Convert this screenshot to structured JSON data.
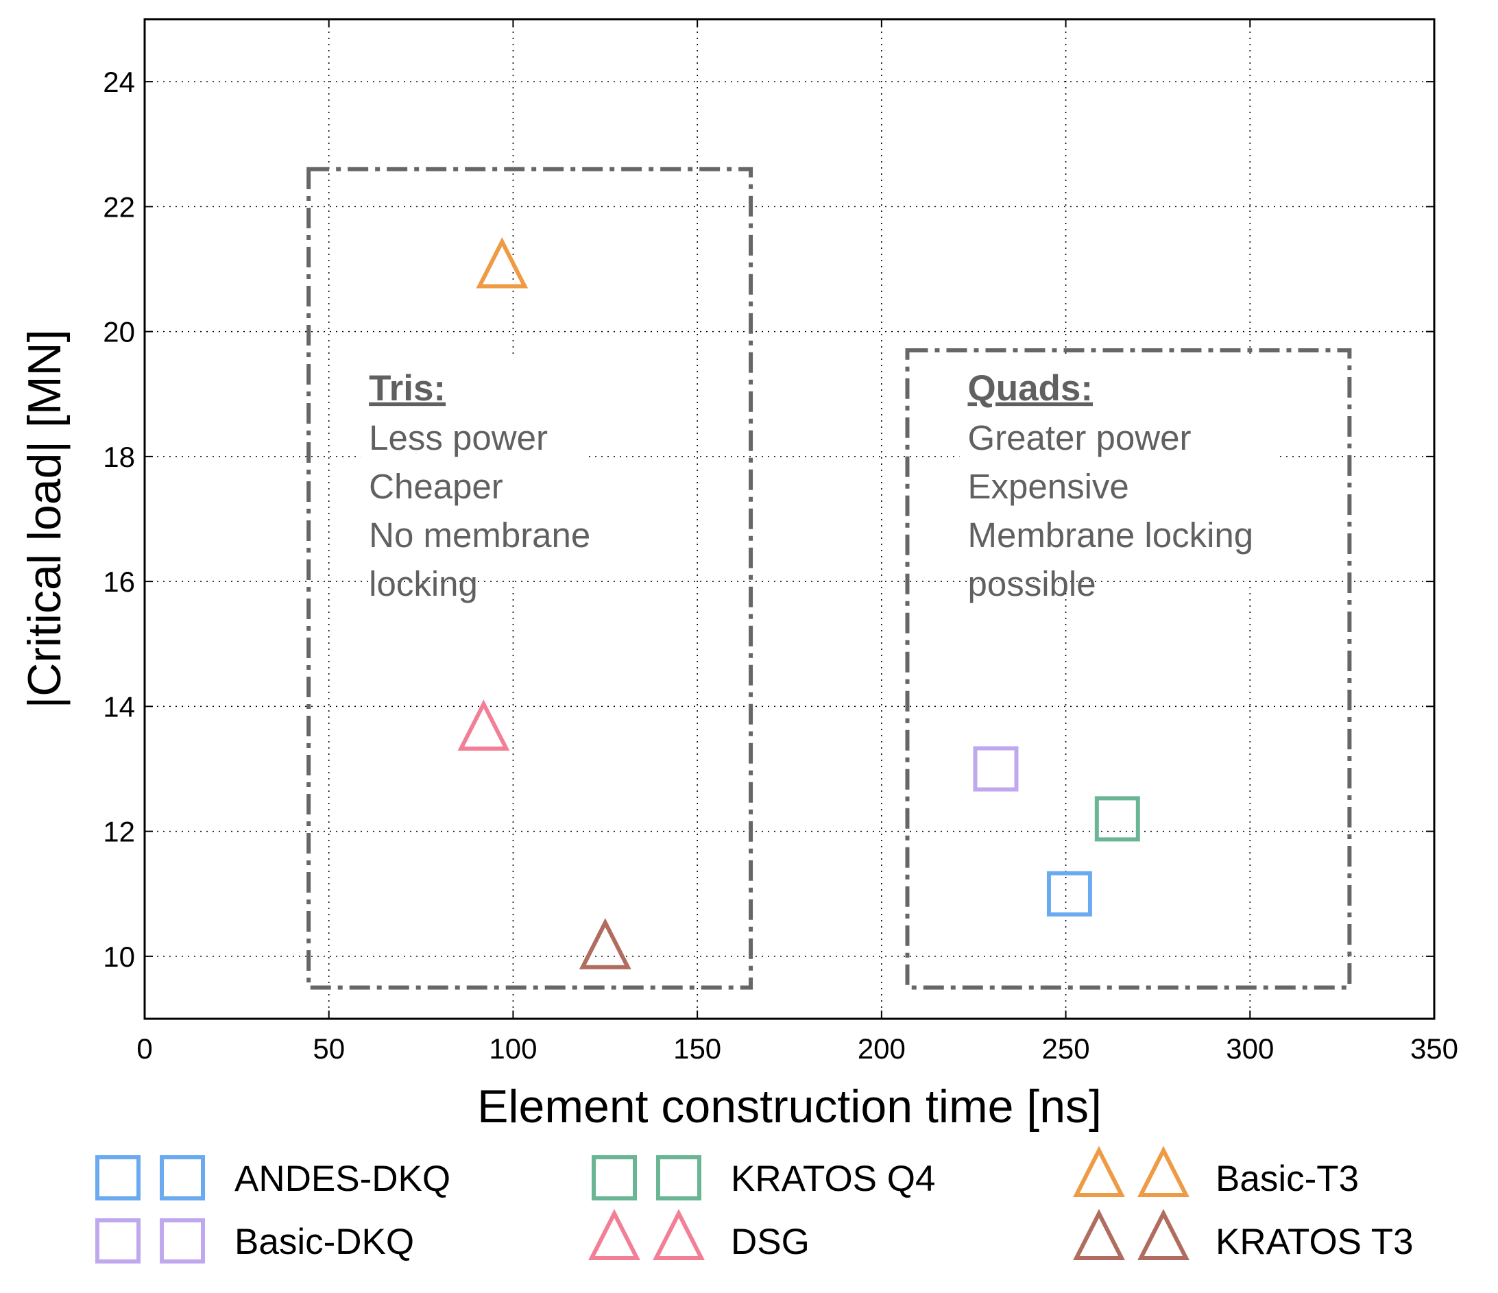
{
  "chart_data": {
    "type": "scatter",
    "xlabel": "Element construction time [ns]",
    "ylabel": "|Critical load| [MN]",
    "xlim": [
      0,
      350
    ],
    "ylim": [
      9,
      25
    ],
    "xticks": [
      "0",
      "50",
      "100",
      "150",
      "200",
      "250",
      "300",
      "350"
    ],
    "yticks": [
      "10",
      "12",
      "14",
      "16",
      "18",
      "20",
      "22",
      "24"
    ],
    "grid": true,
    "legend_position": "bottom",
    "series": [
      {
        "name": "ANDES-DKQ",
        "marker": "square",
        "color": "#6aaaf0",
        "x": 251,
        "y": 11.0
      },
      {
        "name": "Basic-DKQ",
        "marker": "square",
        "color": "#c0a8ee",
        "x": 231,
        "y": 13.0
      },
      {
        "name": "KRATOS Q4",
        "marker": "square",
        "color": "#6ab594",
        "x": 264,
        "y": 12.2
      },
      {
        "name": "DSG",
        "marker": "triangle",
        "color": "#f27f96",
        "x": 92,
        "y": 13.6
      },
      {
        "name": "Basic-T3",
        "marker": "triangle",
        "color": "#ef9a45",
        "x": 97,
        "y": 21.0
      },
      {
        "name": "KRATOS T3",
        "marker": "triangle",
        "color": "#b06c5e",
        "x": 125,
        "y": 10.1
      }
    ],
    "annotations": [
      {
        "heading": "Tris:",
        "lines": [
          "Less power",
          "Cheaper",
          "No membrane",
          "locking"
        ],
        "box_x": [
          44.5,
          164.5
        ],
        "box_y": [
          9.5,
          22.6
        ]
      },
      {
        "heading": "Quads:",
        "lines": [
          "Greater power",
          "Expensive",
          "Membrane locking",
          "possible"
        ],
        "box_x": [
          207,
          327
        ],
        "box_y": [
          9.5,
          19.7
        ]
      }
    ],
    "box_color": "#666666"
  }
}
